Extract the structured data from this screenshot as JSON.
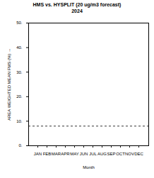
{
  "chart_data": {
    "type": "bar",
    "title": "HMS vs. HYSPLIT (20 ug/m3 forecast)",
    "subtitle": "2024",
    "x_label": "Month",
    "y_label": "AREA WEIGHTED MEAN FMS (%)",
    "categories": [
      "JAN",
      "FEB",
      "MAR",
      "APR",
      "MAY",
      "JUN",
      "JUL",
      "AUG",
      "SEP",
      "OCT",
      "NOV",
      "DEC"
    ],
    "values": [
      null,
      null,
      null,
      null,
      null,
      null,
      null,
      0.3,
      0.3,
      0.3,
      0.3,
      0.3
    ],
    "color": "#000000",
    "reference_line": 8,
    "ylim": [
      0,
      50
    ],
    "yticks": [
      {
        "value": 0,
        "label": "0."
      },
      {
        "value": 10,
        "label": "10."
      },
      {
        "value": 20,
        "label": "20."
      },
      {
        "value": 30,
        "label": "30."
      },
      {
        "value": 40,
        "label": "40."
      },
      {
        "value": 50,
        "label": "50."
      }
    ]
  }
}
